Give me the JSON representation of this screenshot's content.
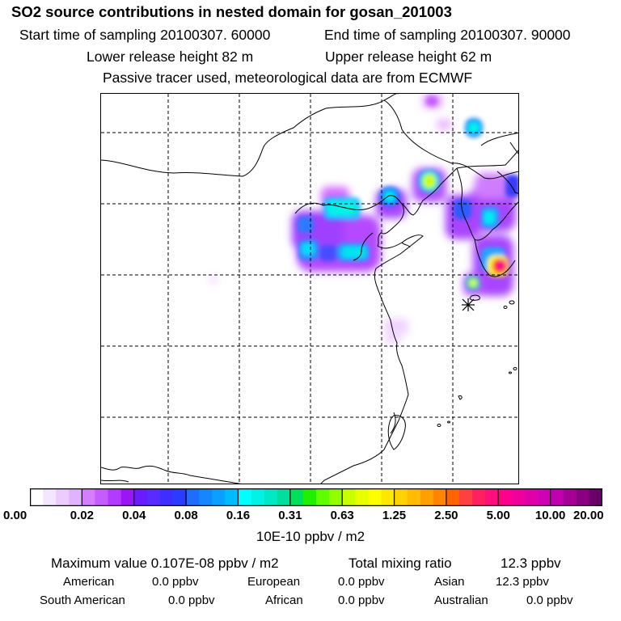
{
  "header": {
    "title": "SO2 source contributions in nested domain for gosan_201003",
    "start_time": "Start time of sampling 20100307. 60000",
    "end_time": "End time of sampling 20100307. 90000",
    "lower_release": "Lower release height   82 m",
    "upper_release": "Upper release height   62 m",
    "tracer_note": "Passive tracer used, meteorological data are from ECMWF"
  },
  "legend": {
    "tick_labels": [
      "0.00",
      "0.02",
      "0.04",
      "0.08",
      "0.16",
      "0.31",
      "0.63",
      "1.25",
      "2.50",
      "5.00",
      "10.00",
      "20.00"
    ],
    "unit_label": "10E-10 ppbv / m2",
    "colors": [
      "#ffffff",
      "#f5e6ff",
      "#ecccff",
      "#e0b3ff",
      "#d67cff",
      "#c45cff",
      "#b23bff",
      "#9a16f8",
      "#6a1bff",
      "#5a2bff",
      "#3e2eff",
      "#2a3cff",
      "#1f6cff",
      "#1487ff",
      "#0aa0ff",
      "#00bbff",
      "#00ffff",
      "#00f2e4",
      "#00e8c6",
      "#00df9e",
      "#00e05c",
      "#20f000",
      "#60ff00",
      "#92ff00",
      "#c8ff00",
      "#e8ff00",
      "#ffff00",
      "#ffe800",
      "#ffd200",
      "#ffbc00",
      "#ffa000",
      "#ff8400",
      "#ff6400",
      "#ff4040",
      "#ff2060",
      "#ff0f7e",
      "#ff008c",
      "#f0009a",
      "#e000a8",
      "#d000b4",
      "#c000b0",
      "#a40098",
      "#880080",
      "#6a0068"
    ]
  },
  "map": {
    "source_marker": "source-star"
  },
  "summary": {
    "max_value": "Maximum value  0.107E-08 ppbv / m2",
    "total_mixing_label": "Total mixing ratio",
    "total_mixing_value": "12.3 ppbv",
    "regions": [
      {
        "name": "American",
        "value": "0.0 ppbv"
      },
      {
        "name": "European",
        "value": "0.0 ppbv"
      },
      {
        "name": "Asian",
        "value": "12.3 ppbv"
      },
      {
        "name": "South American",
        "value": "0.0 ppbv"
      },
      {
        "name": "African",
        "value": "0.0 ppbv"
      },
      {
        "name": "Australian",
        "value": "0.0 ppbv"
      }
    ]
  }
}
